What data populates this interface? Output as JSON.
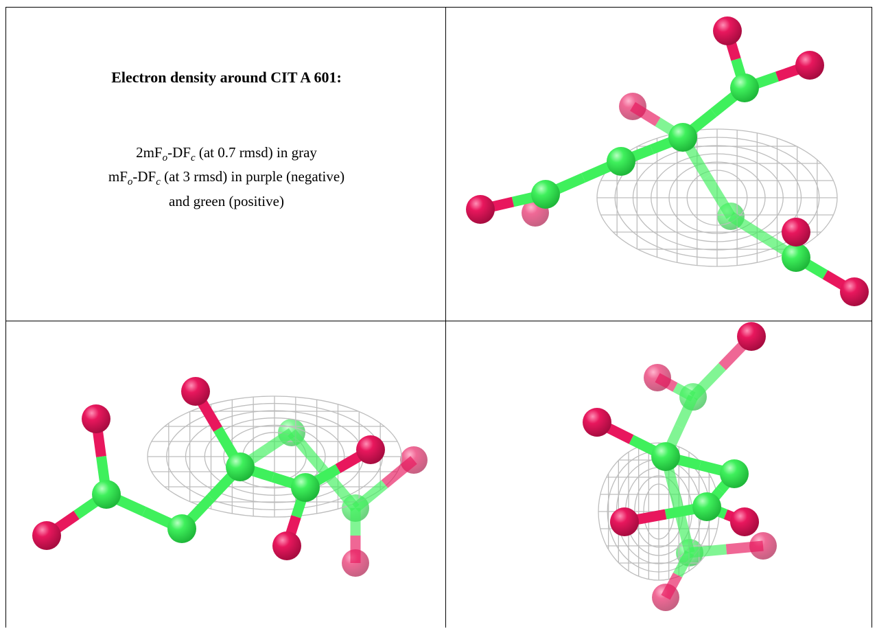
{
  "text_cell": {
    "title": "Electron density around CIT A 601:",
    "lines": [
      [
        {
          "text": "2mF"
        },
        {
          "sub": "o"
        },
        {
          "text": "-DF"
        },
        {
          "sub": "c"
        },
        {
          "text": " (at 0.7 rmsd) in gray"
        }
      ],
      [
        {
          "text": "mF"
        },
        {
          "sub": "o"
        },
        {
          "text": "-DF"
        },
        {
          "sub": "c"
        },
        {
          "text": " (at 3 rmsd) in purple (negative)"
        }
      ],
      [
        {
          "text": "and green (positive)"
        }
      ]
    ]
  }
}
